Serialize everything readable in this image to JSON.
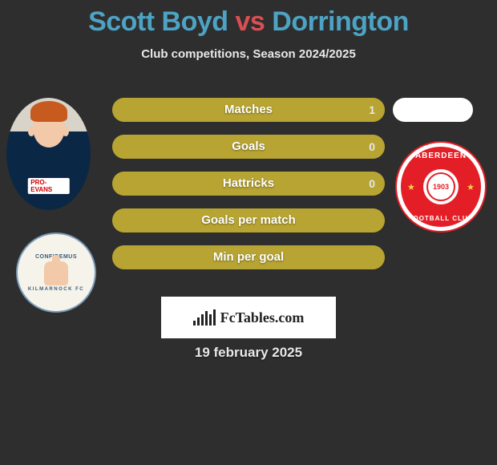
{
  "colors": {
    "background": "#2e2e2e",
    "title_player": "#4da3c4",
    "title_vs": "#d94f53",
    "subtitle": "#e8e8e8",
    "pill_bg": "#7a6a16",
    "pill_fill": "#b7a432",
    "pill_label": "#ffffff",
    "pill_value": "#e8e8e8",
    "date": "#e8e8e8",
    "crest2_red": "#e41e26"
  },
  "title": {
    "player_a": "Scott Boyd",
    "vs": "vs",
    "player_b": "Dorrington",
    "fontsize": 34
  },
  "subtitle": {
    "text": "Club competitions, Season 2024/2025",
    "fontsize": 15
  },
  "stats": {
    "pill_height": 30,
    "pill_gap": 16,
    "rows": [
      {
        "label": "Matches",
        "value": "1",
        "fill_pct": 100
      },
      {
        "label": "Goals",
        "value": "0",
        "fill_pct": 100
      },
      {
        "label": "Hattricks",
        "value": "0",
        "fill_pct": 100
      },
      {
        "label": "Goals per match",
        "value": "",
        "fill_pct": 100
      },
      {
        "label": "Min per goal",
        "value": "",
        "fill_pct": 100
      }
    ]
  },
  "player1": {
    "sponsor_text": "PRO-EVANS"
  },
  "crest1": {
    "text_top": "CONFIDEMUS",
    "text_bottom": "KILMARNOCK FC"
  },
  "crest2": {
    "text_top": "ABERDEEN",
    "text_bottom": "FOOTBALL CLUB",
    "year": "1903"
  },
  "logo": {
    "text": "FcTables.com",
    "bars": [
      6,
      10,
      14,
      18,
      14,
      20
    ]
  },
  "date": {
    "text": "19 february 2025",
    "fontsize": 17
  }
}
